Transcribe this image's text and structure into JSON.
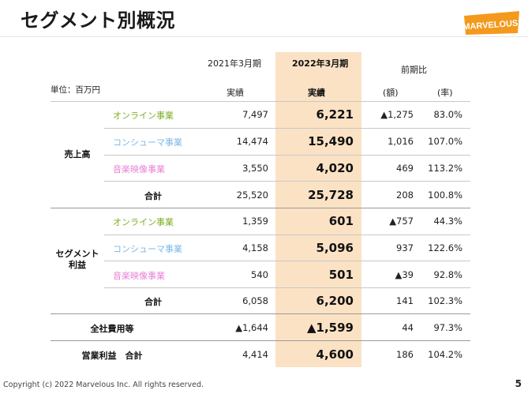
{
  "title": "セグメント別概況",
  "logo_text": "MARVELOUS!",
  "unit": "単位：百万円",
  "headers": {
    "prev": "2021年3月期",
    "curr": "2022年3月期",
    "yoy": "前期比",
    "prev_sub": "実績",
    "curr_sub": "実績",
    "amount": "(額)",
    "rate": "(率)"
  },
  "groups": {
    "sales": "売上高",
    "segment_profit": "セグメント\n利益"
  },
  "segment_colors": {
    "online": "#7ab020",
    "consumer": "#7bb7e6",
    "music": "#e97fd6"
  },
  "rows": [
    {
      "label": "オンライン事業",
      "prev": "7,497",
      "curr": "6,221",
      "amount": "▲1,275",
      "rate": "83.0%"
    },
    {
      "label": "コンシューマ事業",
      "prev": "14,474",
      "curr": "15,490",
      "amount": "1,016",
      "rate": "107.0%"
    },
    {
      "label": "音楽映像事業",
      "prev": "3,550",
      "curr": "4,020",
      "amount": "469",
      "rate": "113.2%"
    },
    {
      "label": "合計",
      "prev": "25,520",
      "curr": "25,728",
      "amount": "208",
      "rate": "100.8%"
    },
    {
      "label": "オンライン事業",
      "prev": "1,359",
      "curr": "601",
      "amount": "▲757",
      "rate": "44.3%"
    },
    {
      "label": "コンシューマ事業",
      "prev": "4,158",
      "curr": "5,096",
      "amount": "937",
      "rate": "122.6%"
    },
    {
      "label": "音楽映像事業",
      "prev": "540",
      "curr": "501",
      "amount": "▲39",
      "rate": "92.8%"
    },
    {
      "label": "合計",
      "prev": "6,058",
      "curr": "6,200",
      "amount": "141",
      "rate": "102.3%"
    },
    {
      "label": "全社費用等",
      "prev": "▲1,644",
      "curr": "▲1,599",
      "amount": "44",
      "rate": "97.3%"
    },
    {
      "label": "営業利益　合計",
      "prev": "4,414",
      "curr": "4,600",
      "amount": "186",
      "rate": "104.2%"
    }
  ],
  "footer": "Copyright (c) 2022 Marvelous Inc. All rights reserved.",
  "page_number": "5"
}
